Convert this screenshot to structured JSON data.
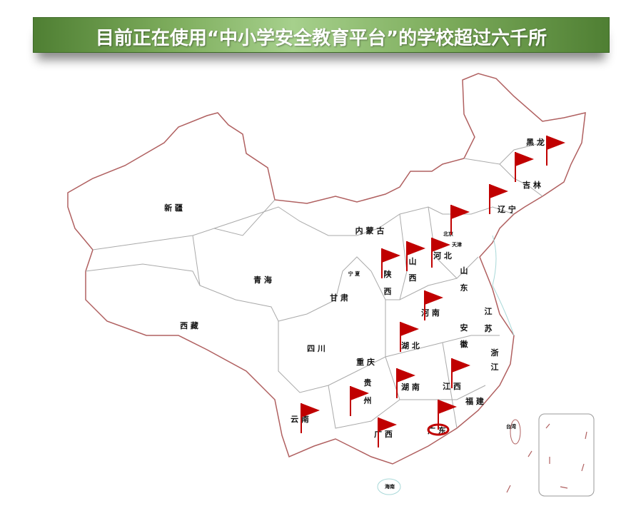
{
  "title": "目前正在使用“中小学安全教育平台”的学校超过六千所",
  "colors": {
    "banner": "#7fae5e",
    "flag": "#c00000",
    "border": "#b06060",
    "province_border": "#aaaaaa"
  },
  "provinces": [
    {
      "id": "xinjiang",
      "label": "新 疆"
    },
    {
      "id": "xizang",
      "label": "西 藏"
    },
    {
      "id": "qinghai",
      "label": "青 海"
    },
    {
      "id": "neimenggu",
      "label": "内 蒙 古"
    },
    {
      "id": "gansu",
      "label": "甘 肃"
    },
    {
      "id": "ningxia",
      "label": "宁 夏"
    },
    {
      "id": "shaanxi1",
      "label": "陕"
    },
    {
      "id": "shaanxi2",
      "label": "西"
    },
    {
      "id": "shanxi1",
      "label": "山"
    },
    {
      "id": "shanxi2",
      "label": "西"
    },
    {
      "id": "hebei",
      "label": "河 北"
    },
    {
      "id": "beijing",
      "label": "北京"
    },
    {
      "id": "tianjin",
      "label": "天津"
    },
    {
      "id": "shandong1",
      "label": "山"
    },
    {
      "id": "shandong2",
      "label": "东"
    },
    {
      "id": "henan",
      "label": "河 南"
    },
    {
      "id": "jiangsu1",
      "label": "江"
    },
    {
      "id": "jiangsu2",
      "label": "苏"
    },
    {
      "id": "anhui1",
      "label": "安"
    },
    {
      "id": "anhui2",
      "label": "徽"
    },
    {
      "id": "hubei",
      "label": "湖 北"
    },
    {
      "id": "sichuan",
      "label": "四 川"
    },
    {
      "id": "chongqing",
      "label": "重 庆"
    },
    {
      "id": "zhejiang1",
      "label": "浙"
    },
    {
      "id": "zhejiang2",
      "label": "江"
    },
    {
      "id": "guizhou1",
      "label": "贵"
    },
    {
      "id": "guizhou2",
      "label": "州"
    },
    {
      "id": "hunan",
      "label": "湖 南"
    },
    {
      "id": "jiangxi",
      "label": "江 西"
    },
    {
      "id": "fujian",
      "label": "福 建"
    },
    {
      "id": "yunnan",
      "label": "云 南"
    },
    {
      "id": "guangxi",
      "label": "广 西"
    },
    {
      "id": "guangdong",
      "label": "广 东"
    },
    {
      "id": "taiwan",
      "label": "台湾"
    },
    {
      "id": "hainan",
      "label": "海南"
    },
    {
      "id": "heilongjiang",
      "label": "黑 龙"
    },
    {
      "id": "jilin",
      "label": "吉 林"
    },
    {
      "id": "liaoning",
      "label": "辽 宁"
    }
  ],
  "flags": [
    "黑龙江",
    "吉林",
    "辽宁",
    "北京",
    "陕西",
    "山西",
    "河北",
    "河南",
    "湖北",
    "江西",
    "湖南",
    "贵州",
    "云南",
    "广西",
    "广东"
  ]
}
